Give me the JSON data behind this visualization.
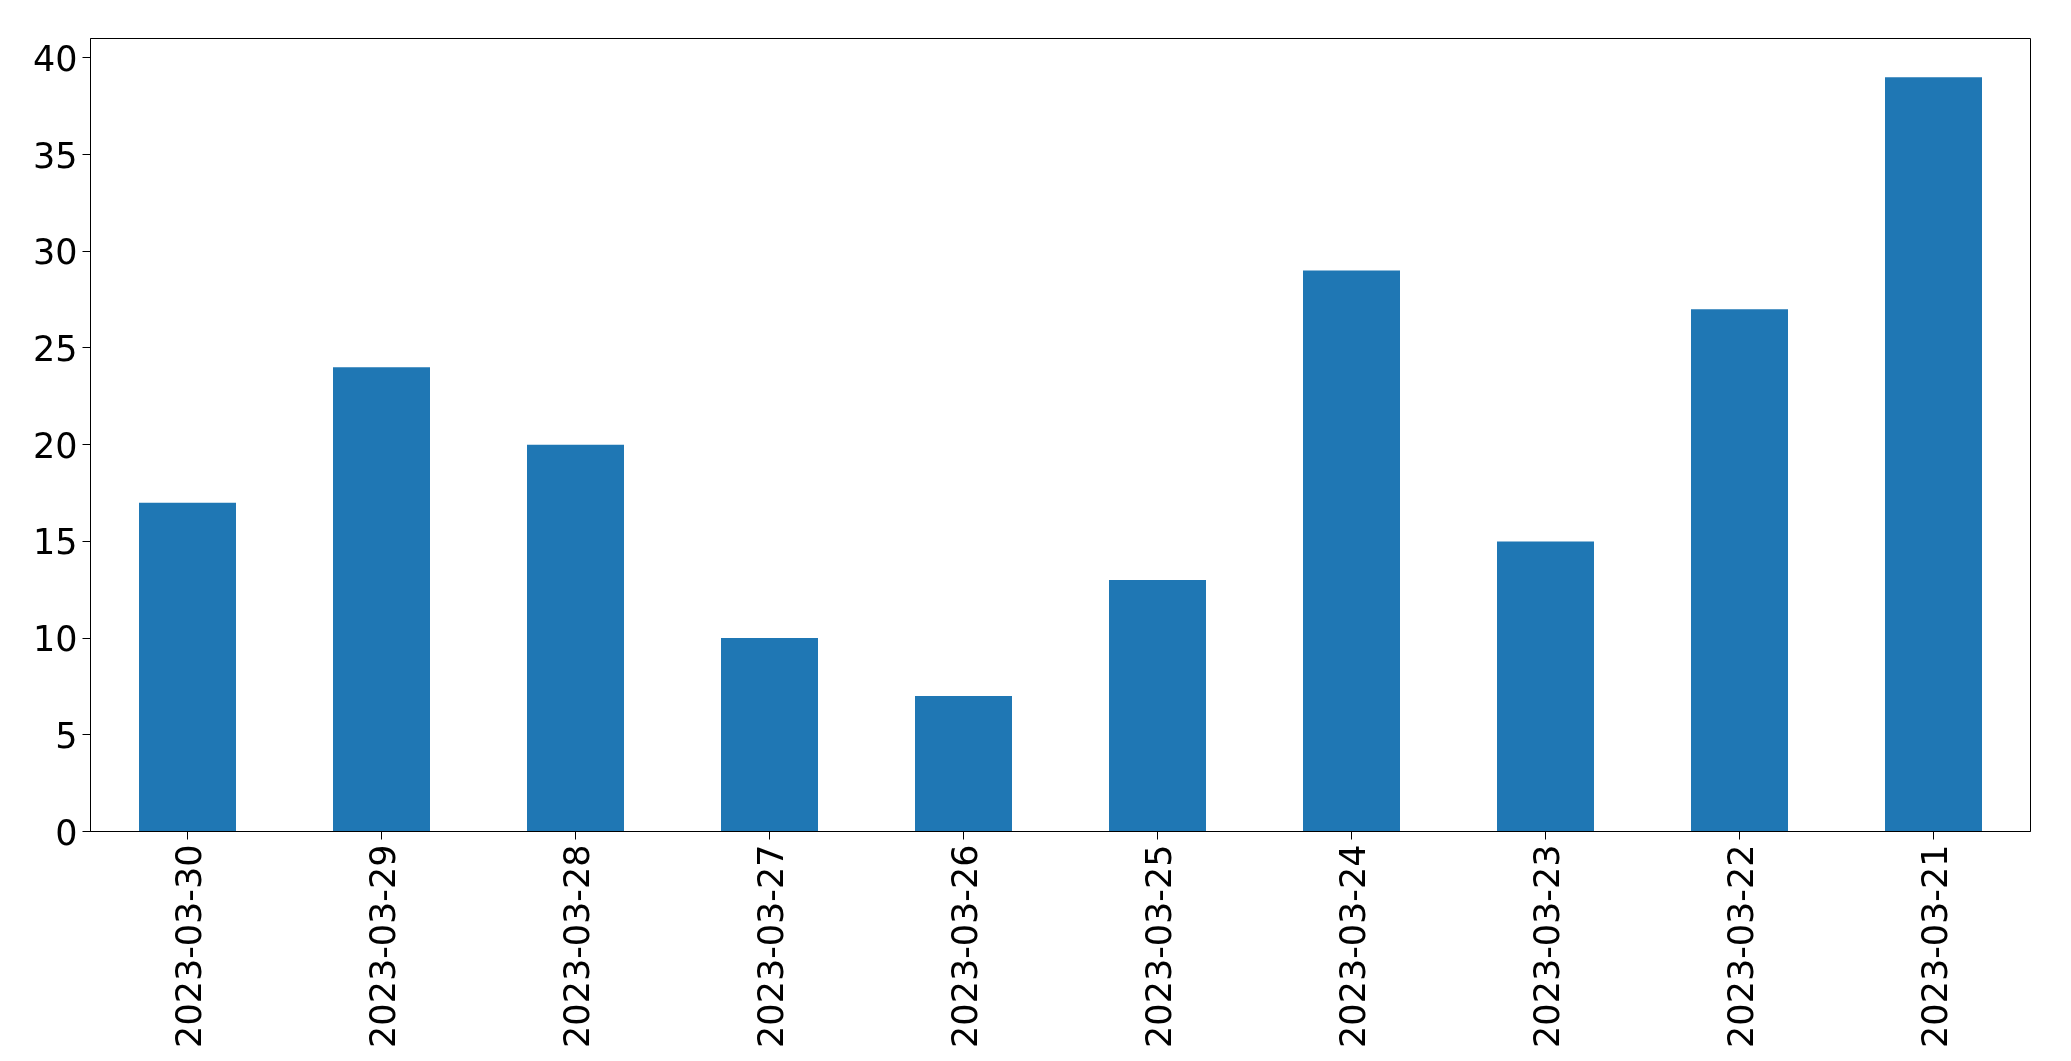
{
  "chart_data": {
    "type": "bar",
    "categories": [
      "2023-03-30",
      "2023-03-29",
      "2023-03-28",
      "2023-03-27",
      "2023-03-26",
      "2023-03-25",
      "2023-03-24",
      "2023-03-23",
      "2023-03-22",
      "2023-03-21"
    ],
    "values": [
      17,
      24,
      20,
      10,
      7,
      13,
      29,
      15,
      27,
      39
    ],
    "color": "#1f77b4",
    "ylim": [
      0,
      41
    ],
    "yticks": [
      0,
      5,
      10,
      15,
      20,
      25,
      30,
      35,
      40
    ],
    "grid": false
  }
}
